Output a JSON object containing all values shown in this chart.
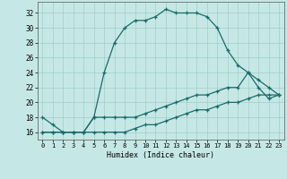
{
  "xlabel": "Humidex (Indice chaleur)",
  "bg_color": "#c5e8e6",
  "grid_color": "#a0ceca",
  "line_color": "#1a6b68",
  "xlim": [
    -0.5,
    23.5
  ],
  "ylim": [
    15.0,
    33.5
  ],
  "xticks": [
    0,
    1,
    2,
    3,
    4,
    5,
    6,
    7,
    8,
    9,
    10,
    11,
    12,
    13,
    14,
    15,
    16,
    17,
    18,
    19,
    20,
    21,
    22,
    23
  ],
  "yticks": [
    16,
    18,
    20,
    22,
    24,
    26,
    28,
    30,
    32
  ],
  "line1_x": [
    0,
    1,
    2,
    3,
    4,
    5,
    6,
    7,
    8,
    9,
    10,
    11,
    12,
    13,
    14,
    15,
    16,
    17,
    18,
    19,
    20,
    21,
    22,
    23
  ],
  "line1_y": [
    18,
    17,
    16,
    16,
    16,
    18,
    24,
    28,
    30,
    31,
    31,
    31.5,
    32.5,
    32,
    32,
    32,
    31.5,
    30,
    27,
    25,
    24,
    23,
    22,
    21
  ],
  "line2_x": [
    0,
    1,
    2,
    3,
    4,
    5,
    6,
    7,
    8,
    9,
    10,
    11,
    12,
    13,
    14,
    15,
    16,
    17,
    18,
    19,
    20,
    21,
    22,
    23
  ],
  "line2_y": [
    16,
    16,
    16,
    16,
    16,
    18,
    18,
    18,
    18,
    18,
    18.5,
    19,
    19.5,
    20,
    20.5,
    21,
    21,
    21.5,
    22,
    22,
    24,
    22,
    20.5,
    21
  ],
  "line3_x": [
    0,
    1,
    2,
    3,
    4,
    5,
    6,
    7,
    8,
    9,
    10,
    11,
    12,
    13,
    14,
    15,
    16,
    17,
    18,
    19,
    20,
    21,
    22,
    23
  ],
  "line3_y": [
    16,
    16,
    16,
    16,
    16,
    16,
    16,
    16,
    16,
    16.5,
    17,
    17,
    17.5,
    18,
    18.5,
    19,
    19,
    19.5,
    20,
    20,
    20.5,
    21,
    21,
    21
  ]
}
